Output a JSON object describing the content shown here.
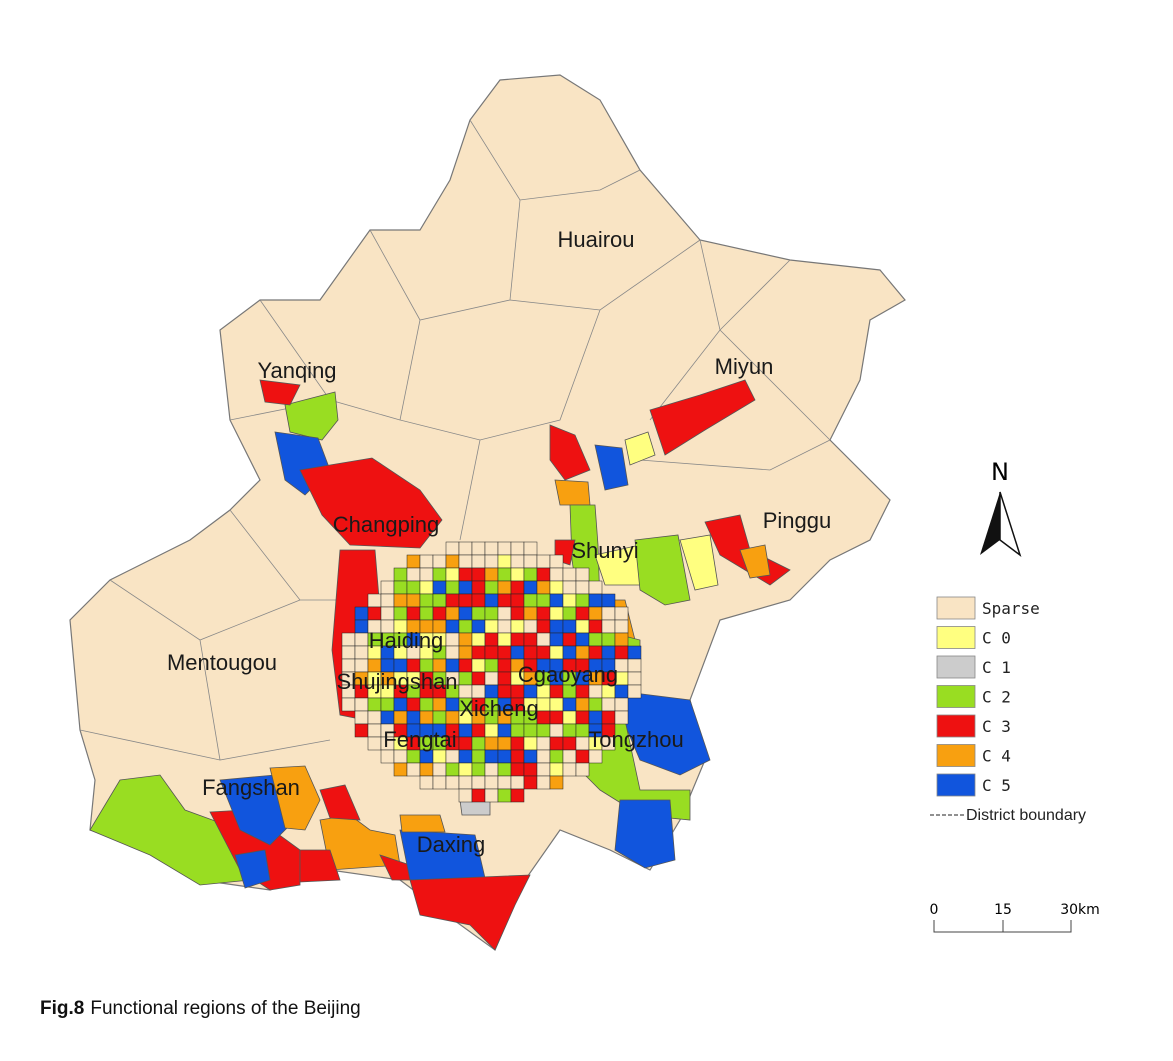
{
  "map": {
    "districts": [
      "Huairou",
      "Yanqing",
      "Miyun",
      "Changping",
      "Pinggu",
      "Shunyi",
      "Haiding",
      "Mentougou",
      "Shujingshan",
      "Cgaoyang",
      "Xicheng",
      "Fengtai",
      "Tongzhou",
      "Fangshan",
      "Daxing"
    ],
    "north": "N",
    "legend": {
      "items": [
        {
          "label": "Sparse",
          "color": "#f9e4c4"
        },
        {
          "label": "C 0",
          "color": "#ffff80"
        },
        {
          "label": "C 1",
          "color": "#cccccc"
        },
        {
          "label": "C 2",
          "color": "#99dd22"
        },
        {
          "label": "C 3",
          "color": "#ee1111"
        },
        {
          "label": "C 4",
          "color": "#f8a010"
        },
        {
          "label": "C 5",
          "color": "#1155dd"
        }
      ],
      "boundary": "District boundary"
    },
    "scale": [
      "0",
      "15",
      "30km"
    ]
  },
  "caption": {
    "label": "Fig.8",
    "text": "Functional regions of the Beijing"
  }
}
